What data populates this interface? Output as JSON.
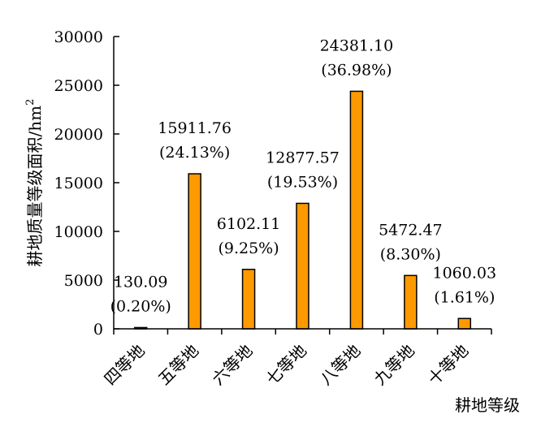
{
  "chart_data": {
    "type": "bar",
    "title": "",
    "xlabel": "耕地等级",
    "ylabel": "耕地质量等级面积/hm",
    "ylabel_superscript": "2",
    "ylim": [
      0,
      30000
    ],
    "yticks": [
      0,
      5000,
      10000,
      15000,
      20000,
      25000,
      30000
    ],
    "categories": [
      "四等地",
      "五等地",
      "六等地",
      "七等地",
      "八等地",
      "九等地",
      "十等地"
    ],
    "values": [
      130.09,
      15911.76,
      6102.11,
      12877.57,
      24381.1,
      5472.47,
      1060.03
    ],
    "value_labels": [
      "130.09",
      "15911.76",
      "6102.11",
      "12877.57",
      "24381.10",
      "5472.47",
      "1060.03"
    ],
    "percent_labels": [
      "(0.20%)",
      "(24.13%)",
      "(9.25%)",
      "(19.53%)",
      "(36.98%)",
      "(8.30%)",
      "(1.61%)"
    ],
    "bar_color": "#FF9900",
    "bar_stroke": "#000000",
    "grid": false,
    "legend": "none"
  }
}
